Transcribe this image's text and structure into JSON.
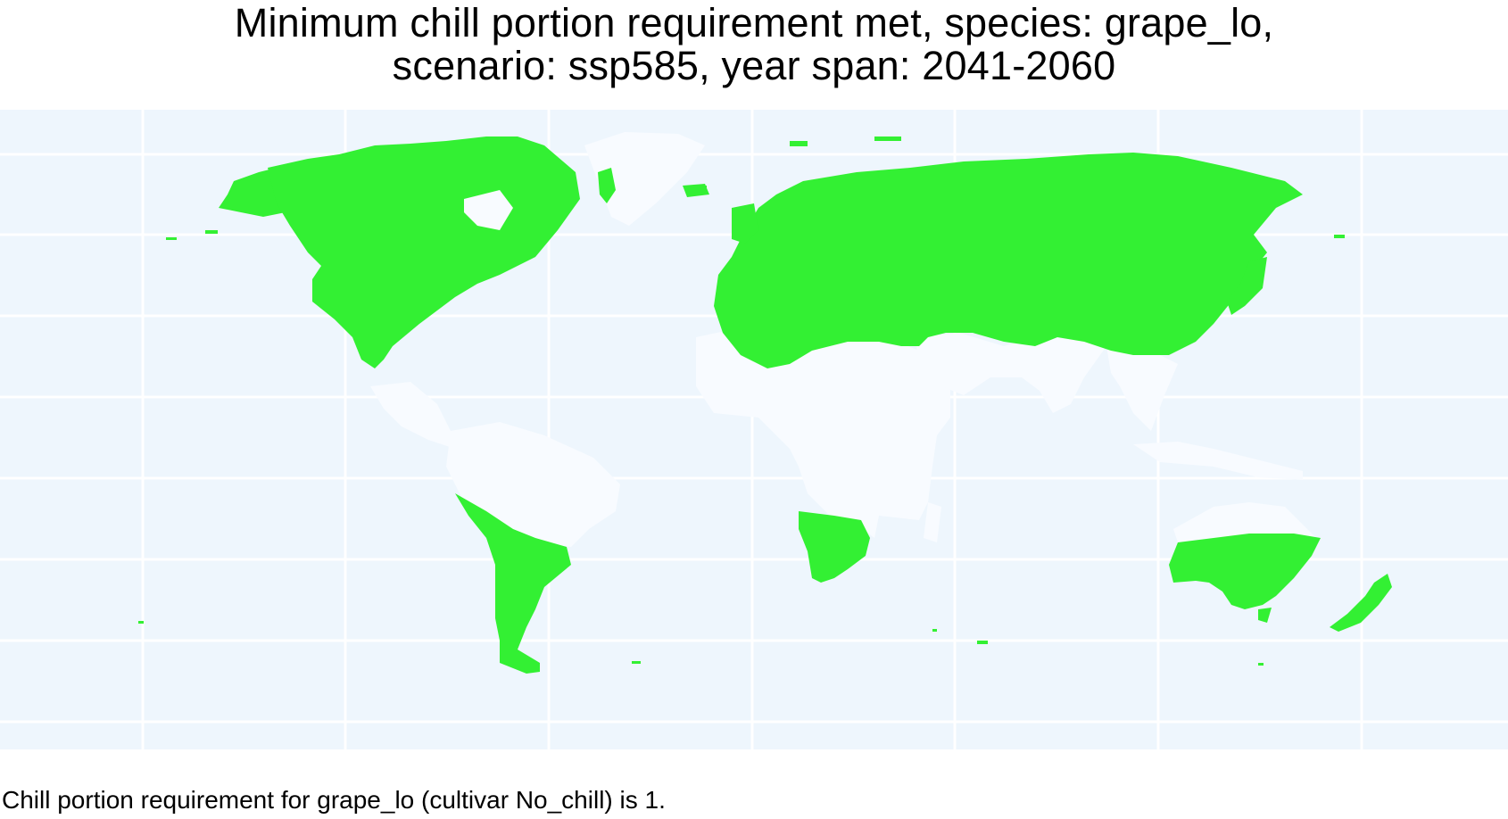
{
  "title": {
    "line1": "Minimum chill portion requirement met, species: grape_lo,",
    "line2": "scenario:  ssp585, year span: 2041-2060"
  },
  "caption": "Chill portion requirement for grape_lo (cultivar No_chill) is 1.",
  "colors": {
    "panel_background": "#eef6fd",
    "gridline": "#ffffff",
    "requirement_met": "#33f033",
    "requirement_not_met": "#f8fbff"
  },
  "map": {
    "projection": "equirectangular world map",
    "gridlines": true,
    "legend": "none"
  }
}
